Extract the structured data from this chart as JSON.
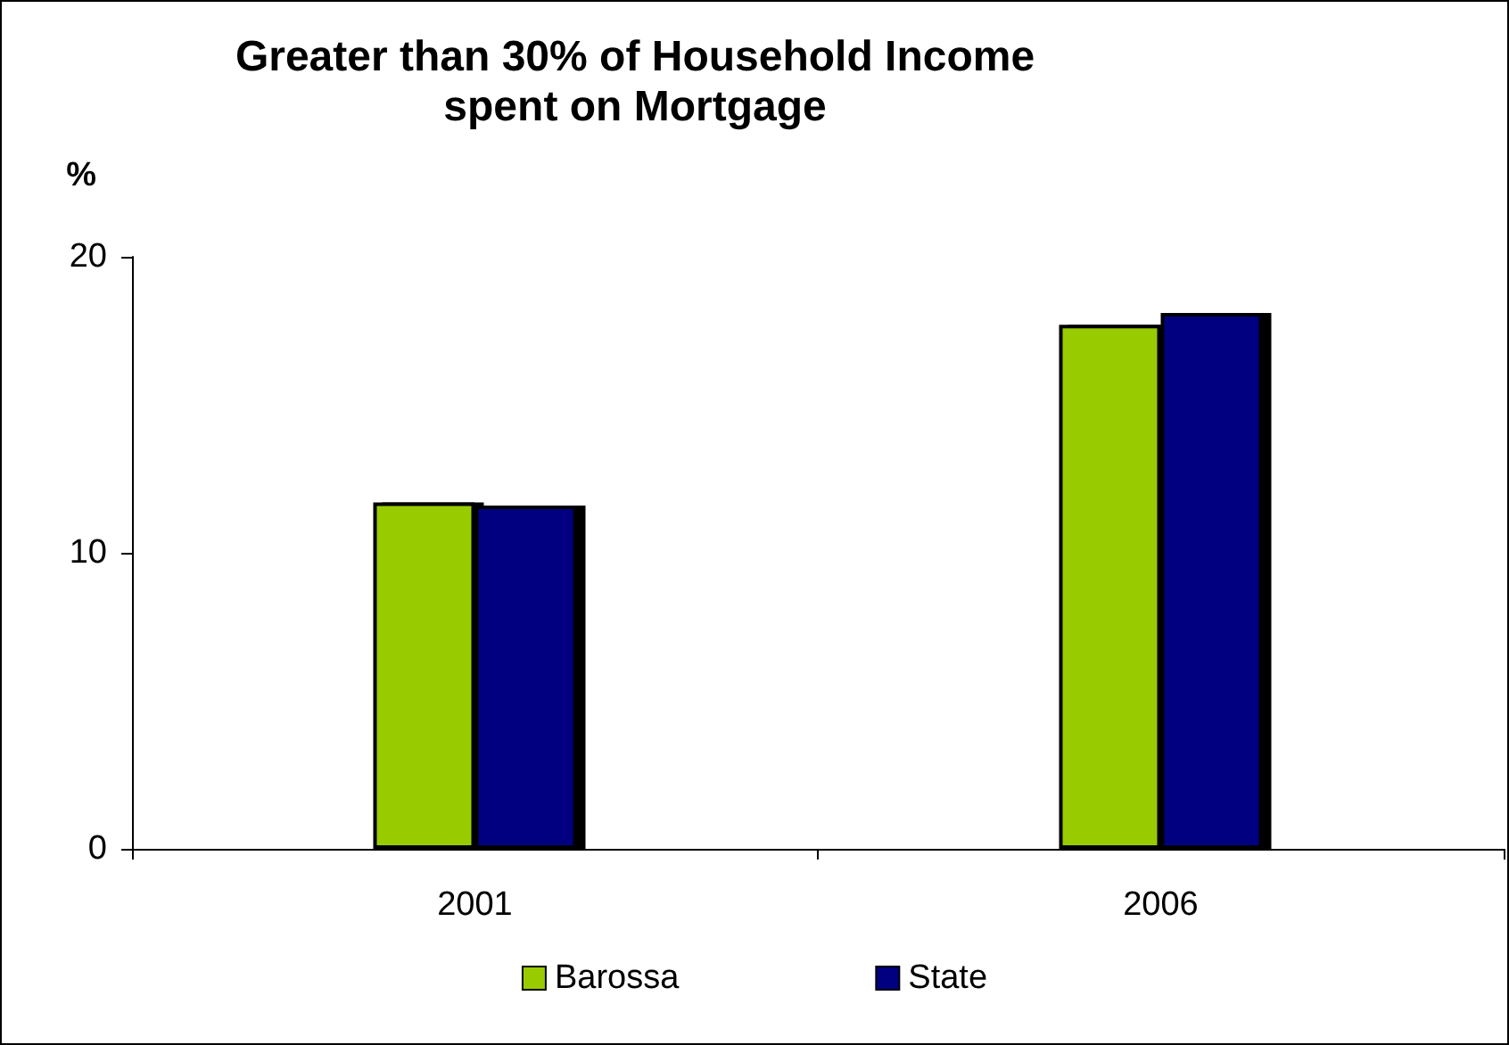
{
  "chart_data": {
    "type": "bar",
    "title": "Greater than 30% of Household Income\nspent on Mortgage",
    "ylabel": "%",
    "categories": [
      "2001",
      "2006"
    ],
    "series": [
      {
        "name": "Barossa",
        "color": "#99cc00",
        "values": [
          11.7,
          17.7
        ]
      },
      {
        "name": "State",
        "color": "#000080",
        "values": [
          11.6,
          18.1
        ]
      }
    ],
    "ylim": [
      0,
      20
    ],
    "yticks": [
      0,
      10,
      20
    ],
    "grid": false,
    "legend": "bottom"
  }
}
